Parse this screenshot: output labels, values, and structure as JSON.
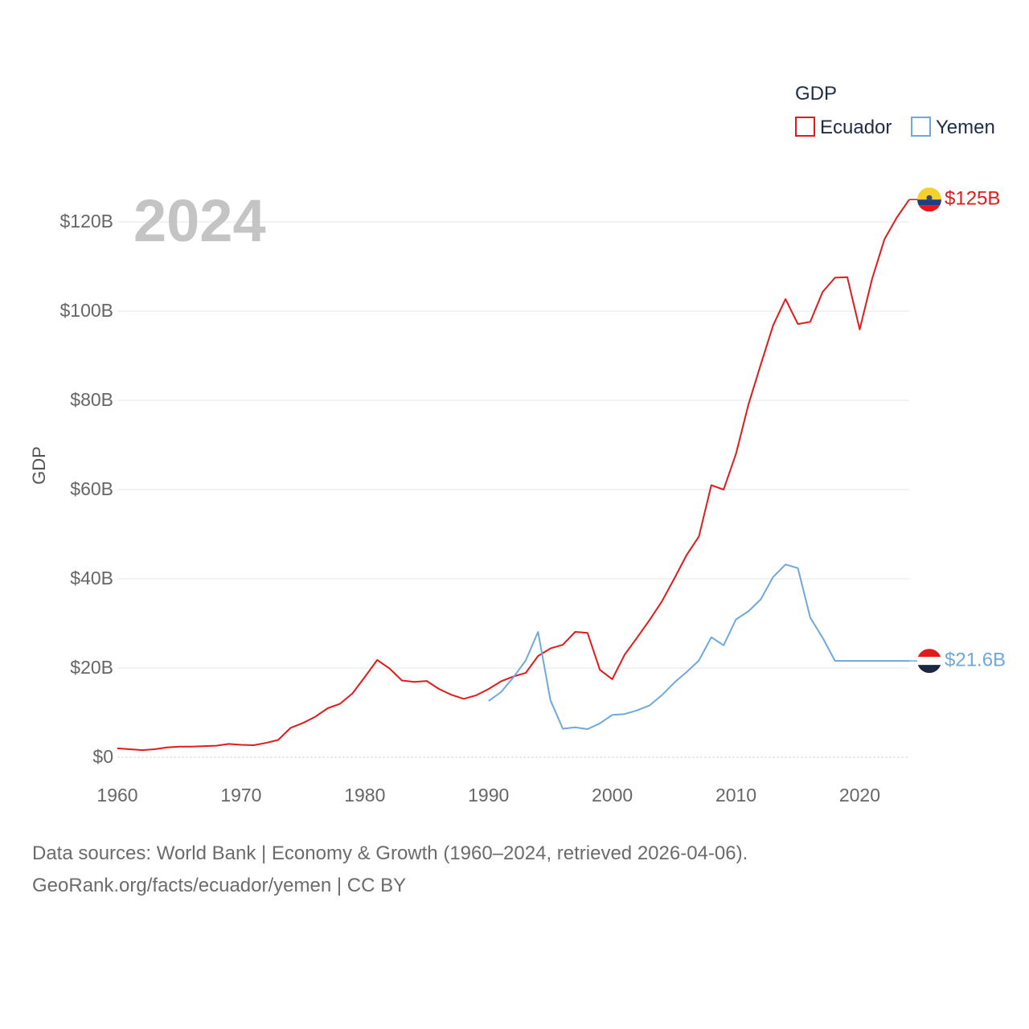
{
  "chart_data": {
    "type": "line",
    "title": "GDP",
    "ylabel": "GDP",
    "xlabel": "",
    "year_label": "2024",
    "xlim": [
      1960,
      2024
    ],
    "ylim": [
      0,
      125
    ],
    "x_ticks": [
      1960,
      1970,
      1980,
      1990,
      2000,
      2010,
      2020
    ],
    "y_ticks": [
      0,
      20,
      40,
      60,
      80,
      100,
      120
    ],
    "y_tick_labels": [
      "$0",
      "$20B",
      "$40B",
      "$60B",
      "$80B",
      "$100B",
      "$120B"
    ],
    "grid": true,
    "legend": {
      "title": "GDP",
      "position": "top-right"
    },
    "series": [
      {
        "name": "Ecuador",
        "color": "#e31a1c",
        "end_label": "$125B",
        "flag": "ecuador-flag",
        "x": [
          1960,
          1961,
          1962,
          1963,
          1964,
          1965,
          1966,
          1967,
          1968,
          1969,
          1970,
          1971,
          1972,
          1973,
          1974,
          1975,
          1976,
          1977,
          1978,
          1979,
          1980,
          1981,
          1982,
          1983,
          1984,
          1985,
          1986,
          1987,
          1988,
          1989,
          1990,
          1991,
          1992,
          1993,
          1994,
          1995,
          1996,
          1997,
          1998,
          1999,
          2000,
          2001,
          2002,
          2003,
          2004,
          2005,
          2006,
          2007,
          2008,
          2009,
          2010,
          2011,
          2012,
          2013,
          2014,
          2015,
          2016,
          2017,
          2018,
          2019,
          2020,
          2021,
          2022,
          2023,
          2024
        ],
        "values": [
          2.0,
          1.8,
          1.6,
          1.8,
          2.2,
          2.4,
          2.4,
          2.5,
          2.6,
          3.0,
          2.8,
          2.7,
          3.2,
          3.9,
          6.6,
          7.7,
          9.1,
          11.0,
          12.0,
          14.3,
          18.0,
          21.8,
          19.9,
          17.2,
          16.9,
          17.1,
          15.3,
          14.0,
          13.1,
          13.9,
          15.3,
          17.0,
          18.1,
          18.9,
          22.7,
          24.4,
          25.2,
          28.1,
          27.9,
          19.6,
          17.5,
          23.0,
          26.8,
          30.7,
          34.9,
          40.0,
          45.3,
          49.5,
          61.0,
          60.0,
          68.0,
          79.0,
          88.0,
          96.8,
          102.7,
          97.1,
          97.6,
          104.3,
          107.5,
          107.6,
          95.9,
          107.2,
          116.1,
          121.0,
          125.0
        ]
      },
      {
        "name": "Yemen",
        "color": "#6ea8dc",
        "end_label": "$21.6B",
        "flag": "yemen-flag",
        "x": [
          1990,
          1991,
          1992,
          1993,
          1994,
          1995,
          1996,
          1997,
          1998,
          1999,
          2000,
          2001,
          2002,
          2003,
          2004,
          2005,
          2006,
          2007,
          2008,
          2009,
          2010,
          2011,
          2012,
          2013,
          2014,
          2015,
          2016,
          2017,
          2018,
          2019,
          2020,
          2021,
          2022,
          2023,
          2024
        ],
        "values": [
          12.6,
          14.6,
          17.9,
          21.7,
          28.1,
          12.8,
          6.4,
          6.7,
          6.3,
          7.6,
          9.5,
          9.7,
          10.5,
          11.6,
          13.9,
          16.7,
          19.1,
          21.7,
          26.9,
          25.1,
          30.9,
          32.7,
          35.4,
          40.4,
          43.2,
          42.4,
          31.3,
          26.8,
          21.6,
          21.6,
          21.6,
          21.6,
          21.6,
          21.6,
          21.6
        ]
      }
    ]
  },
  "source": {
    "line1": "Data sources: World Bank | Economy & Growth (1960–2024, retrieved 2026-04-06).",
    "line2": "GeoRank.org/facts/ecuador/yemen | CC BY"
  }
}
